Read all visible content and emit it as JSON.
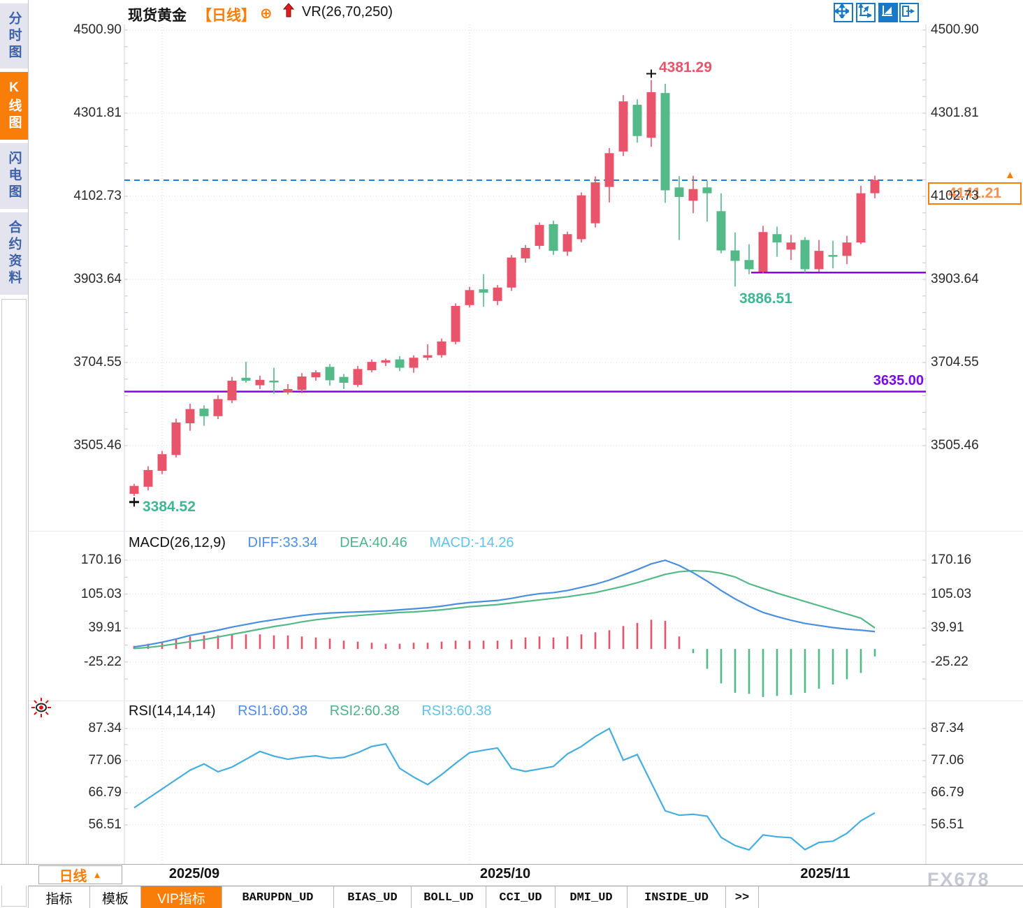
{
  "title": {
    "symbol": "现货黄金",
    "period": "【日线】",
    "plus_icon": "⊕",
    "indicator": "VR(26,70,250)"
  },
  "sidebar": {
    "items": [
      {
        "label": "分时图",
        "active": false
      },
      {
        "label": "K线图",
        "active": true
      },
      {
        "label": "闪电图",
        "active": false
      },
      {
        "label": "合约资料",
        "active": false
      }
    ]
  },
  "toolbar": {
    "icons": [
      "move-icon",
      "axis-scale-icon",
      "axis-auto-icon",
      "exit-panel-icon"
    ]
  },
  "axes": {
    "price_labels": [
      "4500.90",
      "4301.81",
      "4102.73",
      "3903.64",
      "3704.55",
      "3505.46"
    ],
    "macd_labels": [
      "170.16",
      "105.03",
      "39.91",
      "-25.22"
    ],
    "rsi_labels": [
      "87.34",
      "77.06",
      "66.79",
      "56.51"
    ],
    "time_labels": [
      "2025/09",
      "2025/10",
      "2025/11"
    ]
  },
  "macd_header": {
    "name": "MACD(26,12,9)",
    "diff": "DIFF:33.34",
    "dea": "DEA:40.46",
    "macd": "MACD:-14.26"
  },
  "rsi_header": {
    "name": "RSI(14,14,14)",
    "rsi1": "RSI1:60.38",
    "rsi2": "RSI2:60.38",
    "rsi3": "RSI3:60.38"
  },
  "annotations": {
    "high": "4381.29",
    "low": "3886.51",
    "start_low": "3384.52",
    "support": "3635.00",
    "last_price": "4141.21"
  },
  "period_selector": {
    "label": "日线",
    "arrow": "▲"
  },
  "bottom_tabs": [
    {
      "label": "指标",
      "active": false
    },
    {
      "label": "模板",
      "active": false
    },
    {
      "label": "VIP指标",
      "active": true
    },
    {
      "label": "BARUPDN_UD",
      "active": false
    },
    {
      "label": "BIAS_UD",
      "active": false
    },
    {
      "label": "BOLL_UD",
      "active": false
    },
    {
      "label": "CCI_UD",
      "active": false
    },
    {
      "label": "DMI_UD",
      "active": false
    },
    {
      "label": "INSIDE_UD",
      "active": false
    },
    {
      "label": ">>",
      "active": false
    }
  ],
  "watermark": "FX678",
  "colors": {
    "up": "#e8556a",
    "down": "#53b987",
    "accent": "#f97d09",
    "support_line": "#8800ee",
    "dashed_line": "#1f7fe0",
    "diff_line": "#4a8fdd",
    "dea_line": "#53b987",
    "rsi_line": "#45aede"
  },
  "chart_data": [
    {
      "type": "candlestick",
      "title": "现货黄金 日线 (Spot Gold Daily)",
      "x_months": [
        "2025/09",
        "2025/10",
        "2025/11"
      ],
      "ylim": [
        3505.46,
        4500.9
      ],
      "ohlc": [
        [
          3390,
          3414,
          3384.52,
          3409
        ],
        [
          3407,
          3456,
          3398,
          3447
        ],
        [
          3445,
          3493,
          3437,
          3485
        ],
        [
          3483,
          3570,
          3477,
          3561
        ],
        [
          3559,
          3606,
          3541,
          3593
        ],
        [
          3594,
          3602,
          3553,
          3576
        ],
        [
          3576,
          3626,
          3569,
          3617
        ],
        [
          3614,
          3670,
          3607,
          3661
        ],
        [
          3668,
          3706,
          3656,
          3661
        ],
        [
          3650,
          3673,
          3641,
          3663
        ],
        [
          3661,
          3692,
          3630,
          3659
        ],
        [
          3633,
          3653,
          3628,
          3641
        ],
        [
          3639,
          3679,
          3631,
          3671
        ],
        [
          3669,
          3686,
          3661,
          3681
        ],
        [
          3694,
          3701,
          3649,
          3662
        ],
        [
          3670,
          3677,
          3641,
          3656
        ],
        [
          3651,
          3696,
          3646,
          3689
        ],
        [
          3686,
          3712,
          3681,
          3706
        ],
        [
          3704,
          3714,
          3696,
          3710
        ],
        [
          3712,
          3720,
          3684,
          3692
        ],
        [
          3692,
          3722,
          3680,
          3716
        ],
        [
          3716,
          3748,
          3710,
          3722
        ],
        [
          3722,
          3762,
          3716,
          3755
        ],
        [
          3754,
          3846,
          3748,
          3840
        ],
        [
          3842,
          3886,
          3836,
          3878
        ],
        [
          3880,
          3916,
          3838,
          3872
        ],
        [
          3852,
          3890,
          3842,
          3884
        ],
        [
          3884,
          3962,
          3876,
          3956
        ],
        [
          3954,
          3986,
          3944,
          3979
        ],
        [
          3984,
          4040,
          3976,
          4034
        ],
        [
          4036,
          4044,
          3962,
          3972
        ],
        [
          3970,
          4018,
          3960,
          4012
        ],
        [
          4000,
          4112,
          3992,
          4105
        ],
        [
          4038,
          4150,
          4028,
          4136
        ],
        [
          4125,
          4218,
          4088,
          4206
        ],
        [
          4210,
          4345,
          4199,
          4330
        ],
        [
          4322,
          4335,
          4231,
          4247
        ],
        [
          4243,
          4381.29,
          4221,
          4352
        ],
        [
          4350,
          4372,
          4087,
          4117
        ],
        [
          4124,
          4151,
          3998,
          4101
        ],
        [
          4092,
          4152,
          4062,
          4120
        ],
        [
          4124,
          4140,
          4042,
          4110
        ],
        [
          4067,
          4110,
          3966,
          3973
        ],
        [
          3973,
          4016,
          3886.51,
          3948
        ],
        [
          3950,
          3988,
          3916,
          3928
        ],
        [
          3922,
          4032,
          3918,
          4017
        ],
        [
          4012,
          4030,
          3958,
          3992
        ],
        [
          3975,
          4010,
          3950,
          3992
        ],
        [
          3998,
          4005,
          3920,
          3928
        ],
        [
          3928,
          3998,
          3922,
          3972
        ],
        [
          3962,
          3996,
          3930,
          3958
        ],
        [
          3960,
          4008,
          3940,
          3992
        ],
        [
          3992,
          4128,
          3988,
          4110
        ],
        [
          4110,
          4152,
          4098,
          4141.21
        ]
      ],
      "high_marker": 4381.29,
      "low_marker": 3886.51,
      "first_low_marker": 3384.52,
      "support_levels": [
        3635.0,
        3920.0
      ],
      "last_close": 4141.21,
      "month_start_indices": [
        2,
        24,
        47
      ]
    },
    {
      "type": "macd",
      "title": "MACD(26,12,9)",
      "ylim": [
        -25.22,
        170.16
      ],
      "diff": [
        4,
        8,
        13,
        19,
        26,
        31,
        36,
        42,
        47,
        52,
        56,
        60,
        64,
        67,
        69,
        70,
        71,
        72,
        73,
        75,
        77,
        79,
        82,
        86,
        89,
        91,
        93,
        97,
        102,
        106,
        108,
        112,
        118,
        124,
        132,
        142,
        152,
        163,
        170,
        160,
        146,
        130,
        112,
        96,
        82,
        70,
        62,
        55,
        49,
        45,
        41,
        38,
        36,
        33.34
      ],
      "dea": [
        1,
        3,
        6,
        10,
        14,
        18,
        23,
        28,
        33,
        38,
        43,
        47,
        52,
        56,
        59,
        62,
        64,
        66,
        68,
        70,
        71,
        73,
        75,
        78,
        81,
        83,
        85,
        88,
        91,
        94,
        97,
        100,
        104,
        108,
        114,
        120,
        127,
        135,
        143,
        148,
        150,
        149,
        145,
        138,
        125,
        116,
        107,
        99,
        91,
        83,
        75,
        67,
        59,
        40.46
      ],
      "histogram_rule": "2*(diff-dea)",
      "last_values": {
        "diff": 33.34,
        "dea": 40.46,
        "macd": -14.26
      }
    },
    {
      "type": "line",
      "title": "RSI(14,14,14)",
      "ylim": [
        56.51,
        87.34
      ],
      "rsi": [
        62,
        65,
        68,
        71,
        74,
        76,
        73.5,
        75,
        77.5,
        80,
        78.5,
        77.5,
        78.2,
        78.6,
        77.8,
        78.1,
        79.6,
        81.6,
        82.4,
        74.6,
        71.8,
        69.4,
        72.6,
        76.2,
        79.6,
        80.4,
        81.1,
        74.6,
        73.6,
        74.4,
        75.2,
        79.2,
        81.6,
        84.8,
        87.34,
        77.2,
        79.0,
        70.0,
        61.0,
        59.6,
        59.9,
        59.3,
        52.5,
        49.9,
        48.5,
        53.3,
        52.7,
        52.4,
        48.6,
        50.9,
        51.3,
        53.8,
        57.8,
        60.38
      ],
      "last_values": {
        "rsi1": 60.38,
        "rsi2": 60.38,
        "rsi3": 60.38
      }
    }
  ]
}
